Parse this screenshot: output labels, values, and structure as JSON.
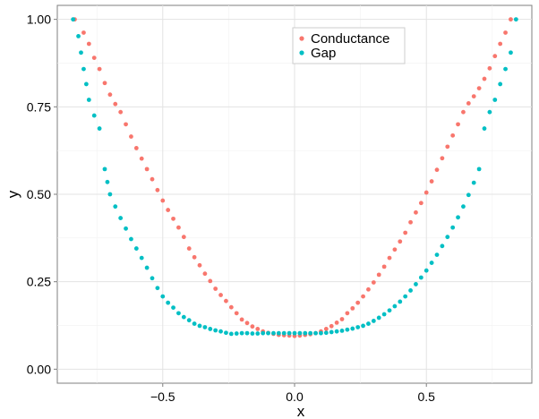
{
  "chart_data": {
    "type": "scatter",
    "xlabel": "x",
    "ylabel": "y",
    "xlim": [
      -0.9,
      0.9
    ],
    "ylim": [
      -0.04,
      1.04
    ],
    "x_ticks": [
      {
        "value": -0.5,
        "label": "−0.5"
      },
      {
        "value": 0.0,
        "label": "0.0"
      },
      {
        "value": 0.5,
        "label": "0.5"
      }
    ],
    "y_ticks": [
      {
        "value": 0.0,
        "label": "0.00"
      },
      {
        "value": 0.25,
        "label": "0.25"
      },
      {
        "value": 0.5,
        "label": "0.50"
      },
      {
        "value": 0.75,
        "label": "0.75"
      },
      {
        "value": 1.0,
        "label": "1.00"
      }
    ],
    "grid": true,
    "legend_position": "top-center",
    "series": [
      {
        "name": "Conductance",
        "color": "#F8766D",
        "x": [
          -0.834,
          -0.8,
          -0.78,
          -0.76,
          -0.74,
          -0.72,
          -0.7,
          -0.68,
          -0.66,
          -0.64,
          -0.62,
          -0.6,
          -0.58,
          -0.56,
          -0.54,
          -0.52,
          -0.5,
          -0.48,
          -0.46,
          -0.44,
          -0.42,
          -0.4,
          -0.38,
          -0.36,
          -0.34,
          -0.32,
          -0.3,
          -0.28,
          -0.26,
          -0.24,
          -0.22,
          -0.2,
          -0.18,
          -0.16,
          -0.14,
          -0.12,
          -0.1,
          -0.08,
          -0.06,
          -0.04,
          -0.02,
          0.0,
          0.02,
          0.04,
          0.06,
          0.08,
          0.1,
          0.12,
          0.14,
          0.16,
          0.18,
          0.2,
          0.22,
          0.24,
          0.26,
          0.28,
          0.3,
          0.32,
          0.34,
          0.36,
          0.38,
          0.4,
          0.42,
          0.44,
          0.46,
          0.48,
          0.5,
          0.52,
          0.54,
          0.56,
          0.58,
          0.6,
          0.62,
          0.64,
          0.66,
          0.68,
          0.7,
          0.72,
          0.74,
          0.76,
          0.78,
          0.8,
          0.82
        ],
        "y": [
          1.0,
          0.962,
          0.93,
          0.89,
          0.858,
          0.818,
          0.785,
          0.758,
          0.735,
          0.7,
          0.665,
          0.632,
          0.602,
          0.572,
          0.543,
          0.512,
          0.482,
          0.455,
          0.43,
          0.405,
          0.378,
          0.345,
          0.32,
          0.297,
          0.273,
          0.252,
          0.23,
          0.212,
          0.195,
          0.177,
          0.16,
          0.142,
          0.132,
          0.122,
          0.115,
          0.108,
          0.104,
          0.101,
          0.098,
          0.097,
          0.096,
          0.095,
          0.096,
          0.098,
          0.1,
          0.103,
          0.108,
          0.115,
          0.123,
          0.133,
          0.143,
          0.16,
          0.174,
          0.19,
          0.208,
          0.228,
          0.248,
          0.27,
          0.293,
          0.318,
          0.342,
          0.365,
          0.39,
          0.42,
          0.448,
          0.475,
          0.505,
          0.537,
          0.57,
          0.603,
          0.636,
          0.668,
          0.7,
          0.735,
          0.76,
          0.78,
          0.803,
          0.83,
          0.86,
          0.895,
          0.93,
          0.962,
          1.0
        ]
      },
      {
        "name": "Gap",
        "color": "#00BFC4",
        "x": [
          -0.84,
          -0.82,
          -0.81,
          -0.8,
          -0.79,
          -0.78,
          -0.76,
          -0.74,
          -0.72,
          -0.71,
          -0.7,
          -0.68,
          -0.66,
          -0.64,
          -0.62,
          -0.6,
          -0.58,
          -0.56,
          -0.54,
          -0.52,
          -0.5,
          -0.48,
          -0.46,
          -0.44,
          -0.42,
          -0.4,
          -0.38,
          -0.36,
          -0.34,
          -0.32,
          -0.3,
          -0.28,
          -0.26,
          -0.24,
          -0.22,
          -0.2,
          -0.18,
          -0.16,
          -0.14,
          -0.12,
          -0.1,
          -0.08,
          -0.06,
          -0.04,
          -0.02,
          0.0,
          0.02,
          0.04,
          0.06,
          0.08,
          0.1,
          0.12,
          0.14,
          0.16,
          0.18,
          0.2,
          0.22,
          0.24,
          0.26,
          0.28,
          0.3,
          0.32,
          0.34,
          0.36,
          0.38,
          0.4,
          0.42,
          0.44,
          0.46,
          0.48,
          0.5,
          0.52,
          0.54,
          0.56,
          0.58,
          0.6,
          0.62,
          0.64,
          0.66,
          0.68,
          0.7,
          0.72,
          0.74,
          0.76,
          0.78,
          0.8,
          0.82,
          0.84
        ],
        "y": [
          1.0,
          0.952,
          0.905,
          0.858,
          0.815,
          0.77,
          0.725,
          0.688,
          0.572,
          0.535,
          0.5,
          0.465,
          0.432,
          0.402,
          0.372,
          0.345,
          0.318,
          0.29,
          0.26,
          0.232,
          0.208,
          0.19,
          0.176,
          0.16,
          0.149,
          0.14,
          0.13,
          0.124,
          0.12,
          0.115,
          0.111,
          0.108,
          0.104,
          0.101,
          0.102,
          0.103,
          0.103,
          0.102,
          0.102,
          0.103,
          0.103,
          0.103,
          0.103,
          0.103,
          0.103,
          0.103,
          0.103,
          0.103,
          0.103,
          0.103,
          0.103,
          0.104,
          0.106,
          0.108,
          0.11,
          0.113,
          0.116,
          0.12,
          0.124,
          0.13,
          0.138,
          0.147,
          0.157,
          0.168,
          0.18,
          0.193,
          0.208,
          0.225,
          0.243,
          0.262,
          0.282,
          0.304,
          0.327,
          0.352,
          0.378,
          0.405,
          0.434,
          0.465,
          0.498,
          0.533,
          0.572,
          0.688,
          0.735,
          0.77,
          0.815,
          0.858,
          0.905,
          1.0
        ]
      }
    ]
  }
}
